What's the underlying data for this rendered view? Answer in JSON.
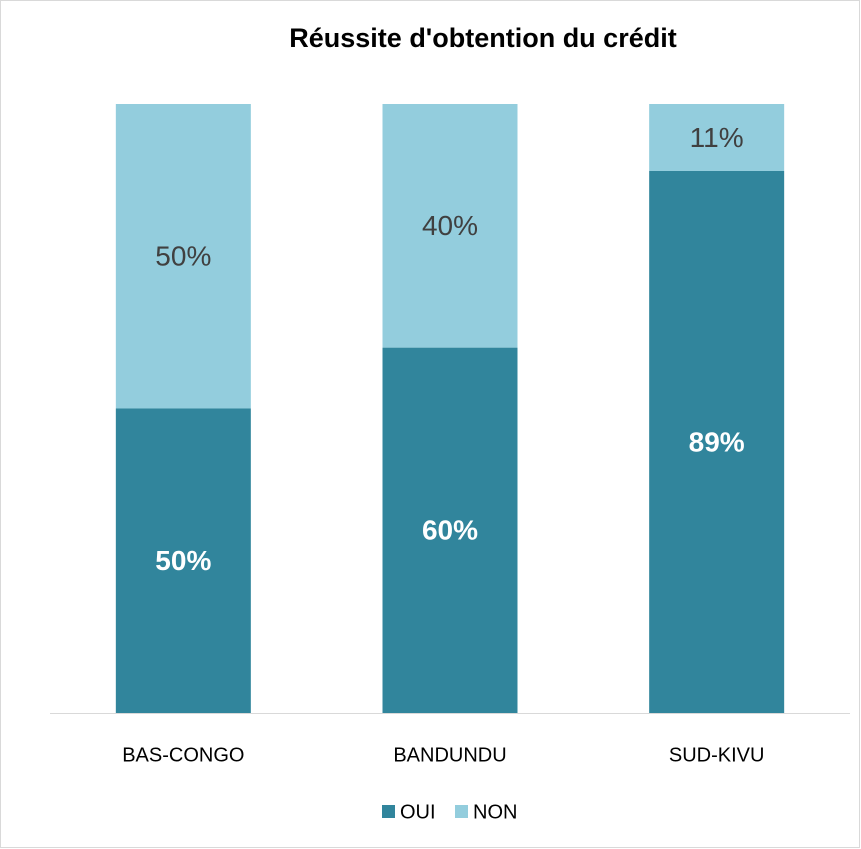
{
  "chart_data": {
    "type": "stacked_bar",
    "title": "Réussite d'obtention du crédit",
    "categories": [
      "BAS-CONGO",
      "BANDUNDU",
      "SUD-KIVU"
    ],
    "series": [
      {
        "name": "OUI",
        "color": "#31859c",
        "values": [
          50,
          60,
          89
        ],
        "value_labels": [
          "50%",
          "60%",
          "89%"
        ]
      },
      {
        "name": "NON",
        "color": "#93cddd",
        "values": [
          50,
          40,
          11
        ],
        "value_labels": [
          "50%",
          "40%",
          "11%"
        ]
      }
    ],
    "legend": "bottom"
  }
}
